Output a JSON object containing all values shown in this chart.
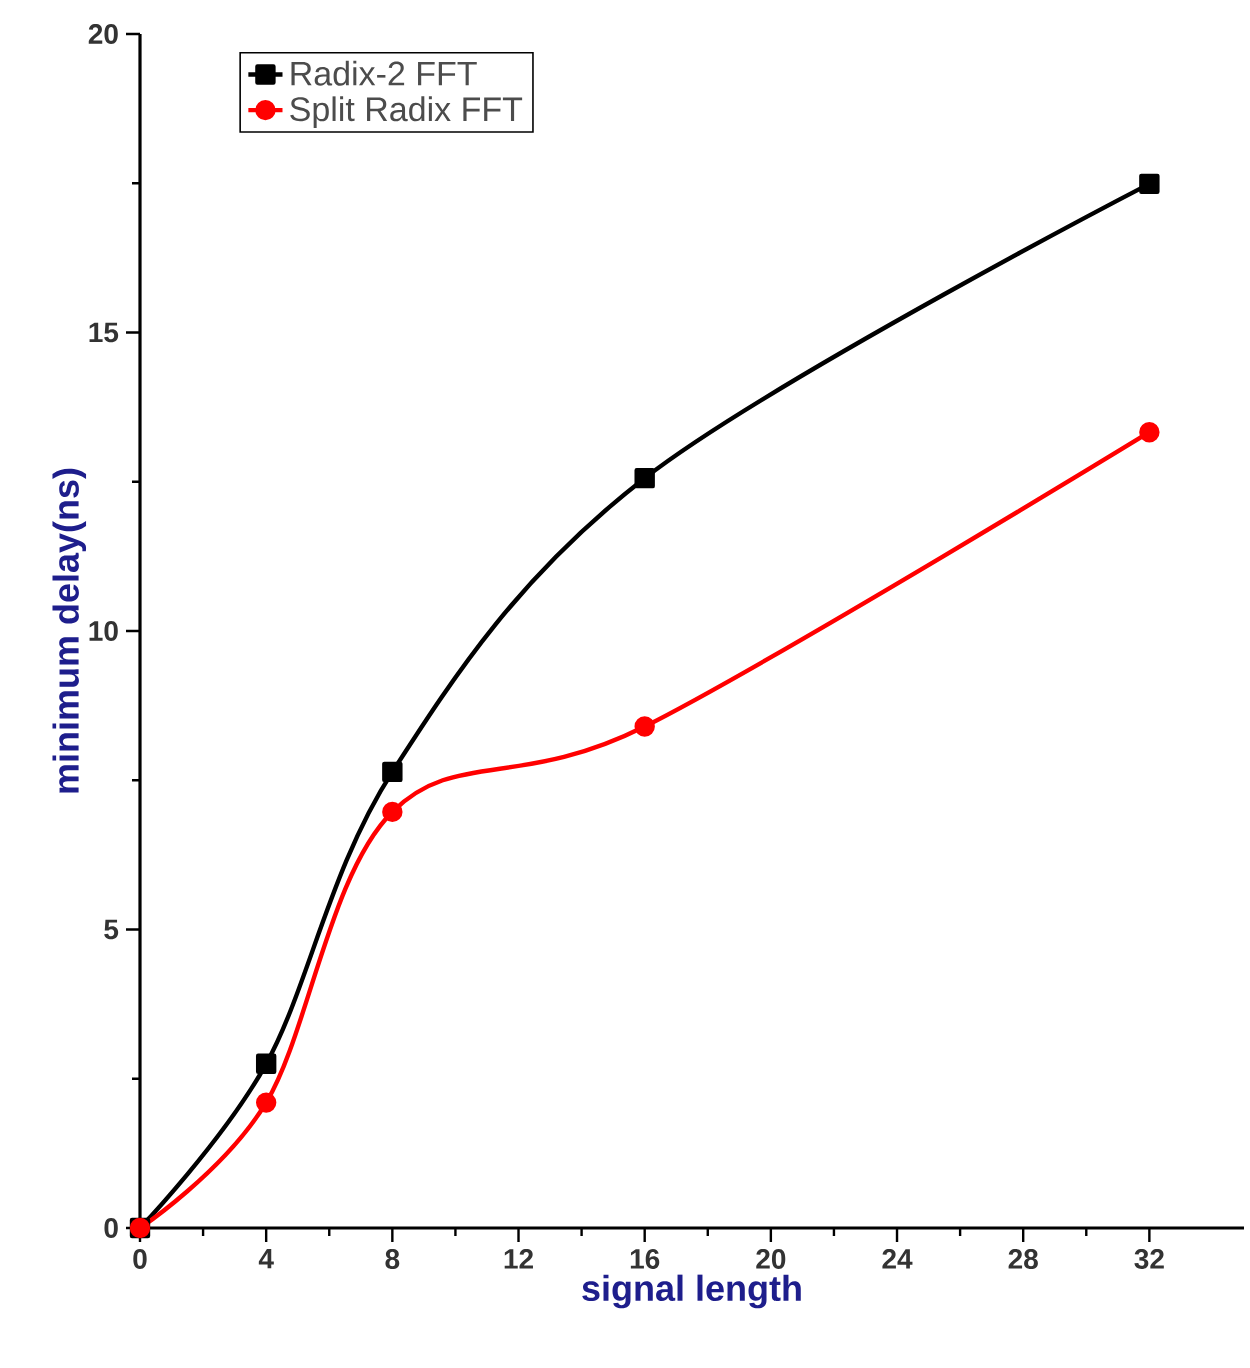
{
  "chart_data": {
    "type": "line",
    "xlabel": "signal length",
    "ylabel": "minimum delay(ns)",
    "x": [
      0,
      4,
      8,
      16,
      32
    ],
    "xlim": [
      0,
      35
    ],
    "xticks": [
      0,
      4,
      8,
      12,
      16,
      20,
      24,
      28,
      32
    ],
    "ylim": [
      0,
      20
    ],
    "yticks": [
      0,
      5,
      10,
      15,
      20
    ],
    "grid": false,
    "legend": "top left",
    "line_style": "solid",
    "series": [
      {
        "name": "Radix-2 FFT",
        "color": "#000000",
        "marker": "square",
        "values": [
          0,
          2.75,
          7.64,
          12.56,
          17.49
        ]
      },
      {
        "name": "Split Radix FFT",
        "color": "#ff0000",
        "marker": "circle",
        "values": [
          0,
          2.1,
          6.97,
          8.4,
          13.33
        ]
      }
    ]
  }
}
